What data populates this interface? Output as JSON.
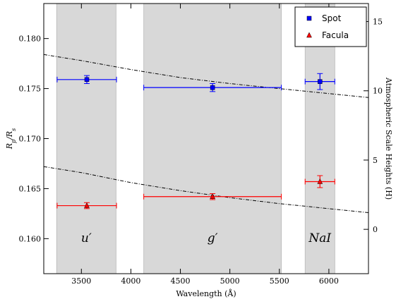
{
  "chart_data": {
    "type": "scatter",
    "title": "",
    "xlabel": "Wavelength (Å)",
    "ylabel": "R_p/R_s",
    "ylabel_right": "Atmospheric Scale Heights (H)",
    "xlim": [
      3120,
      6400
    ],
    "ylim": [
      0.1565,
      0.1835
    ],
    "ylim_right": [
      -3.2,
      16.3
    ],
    "x_ticks": [
      3500,
      4000,
      4500,
      5000,
      5500,
      6000
    ],
    "y_ticks": [
      0.16,
      0.165,
      0.17,
      0.175,
      0.18
    ],
    "y_ticks_right": [
      0,
      5,
      10,
      15
    ],
    "grid": false,
    "legend_position": "top-right",
    "bands": [
      {
        "label": "u′",
        "x0": 3250,
        "x1": 3850
      },
      {
        "label": "g′",
        "x0": 4130,
        "x1": 5520
      },
      {
        "label": "NaI",
        "x0": 5760,
        "x1": 6060
      }
    ],
    "series": [
      {
        "name": "Spot",
        "color": "#0000ff",
        "marker": "square",
        "points": [
          {
            "x": 3555,
            "y": 0.1759,
            "xerr": 300,
            "yerr": 0.0004
          },
          {
            "x": 4825,
            "y": 0.1751,
            "xerr": 695,
            "yerr": 0.0004
          },
          {
            "x": 5910,
            "y": 0.1757,
            "xerr": 150,
            "yerr": 0.0008
          }
        ]
      },
      {
        "name": "Facula",
        "color": "#ff0000",
        "marker": "triangle",
        "points": [
          {
            "x": 3555,
            "y": 0.1633,
            "xerr": 300,
            "yerr": 0.0003
          },
          {
            "x": 4825,
            "y": 0.1642,
            "xerr": 695,
            "yerr": 0.0003
          },
          {
            "x": 5910,
            "y": 0.1657,
            "xerr": 150,
            "yerr": 0.0006
          }
        ]
      }
    ],
    "reference_curves": [
      {
        "style": "dash-dot",
        "color": "#000000",
        "x": [
          3120,
          3500,
          4000,
          4500,
          5000,
          5500,
          6000,
          6400
        ],
        "y": [
          0.1784,
          0.1778,
          0.1769,
          0.1761,
          0.1755,
          0.175,
          0.1745,
          0.1741
        ]
      },
      {
        "style": "dash-dot",
        "color": "#000000",
        "x": [
          3120,
          3500,
          4000,
          4500,
          5000,
          5500,
          6000,
          6400
        ],
        "y": [
          0.1672,
          0.1666,
          0.1656,
          0.1648,
          0.1641,
          0.1635,
          0.163,
          0.1626
        ]
      }
    ]
  }
}
